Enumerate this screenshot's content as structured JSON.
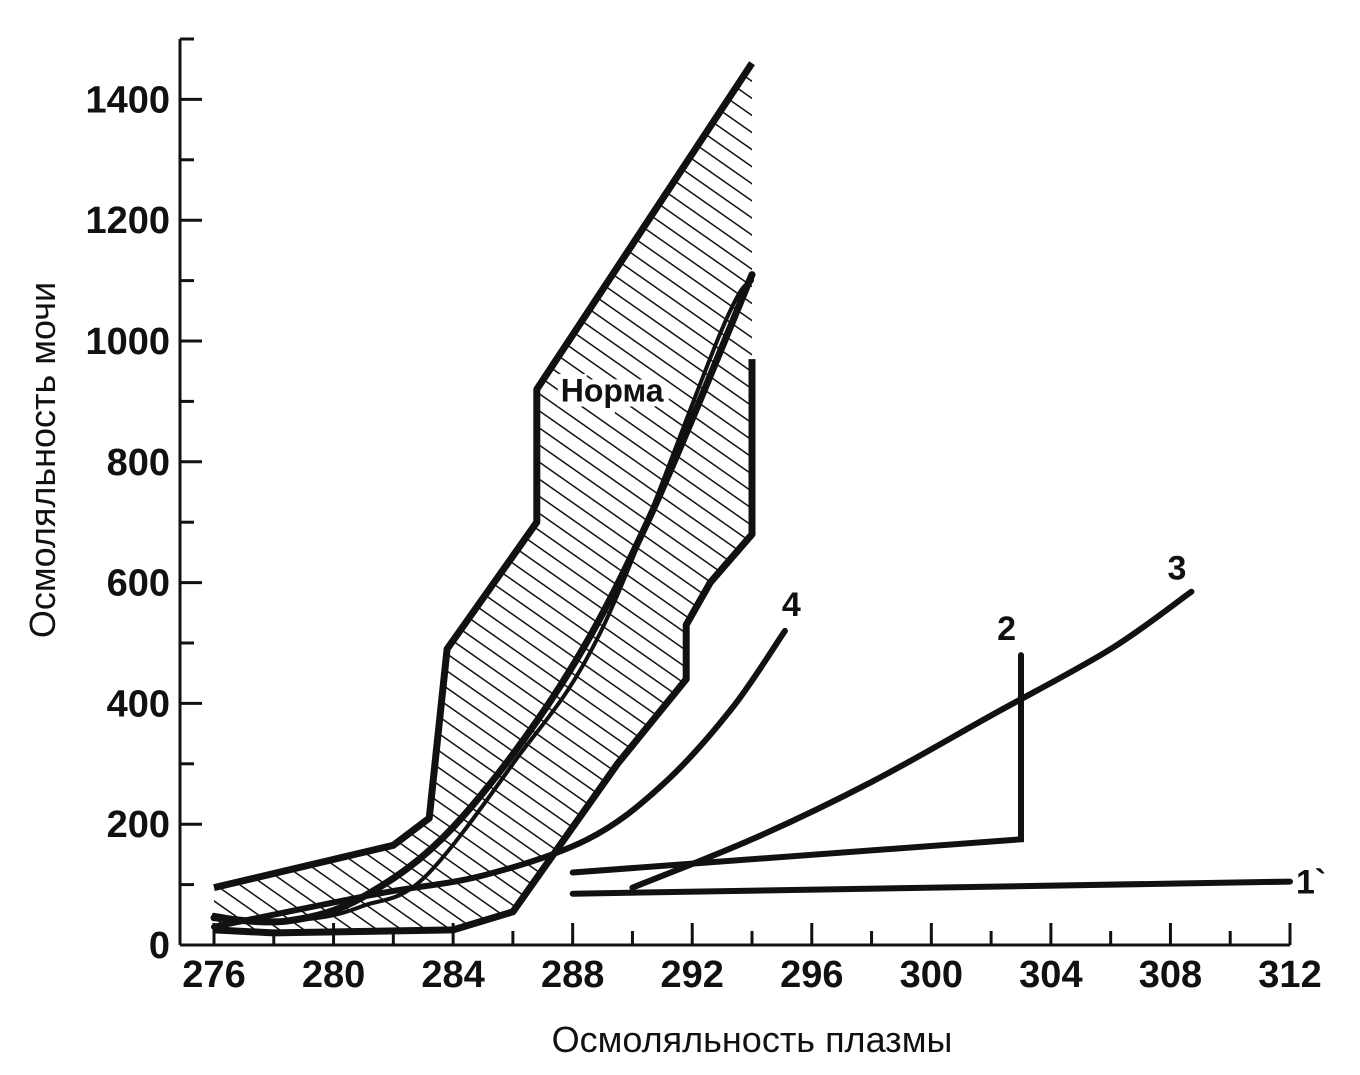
{
  "chart_data": {
    "type": "line",
    "title": "",
    "xlabel": "Осмоляльность плазмы",
    "ylabel": "Осмоляльность мочи",
    "xlim": [
      276,
      312
    ],
    "ylim": [
      0,
      1500
    ],
    "x_ticks": [
      276,
      280,
      284,
      288,
      292,
      296,
      300,
      304,
      308,
      312
    ],
    "y_ticks": [
      0,
      200,
      400,
      600,
      800,
      1000,
      1200,
      1400
    ],
    "x_minor_step": 2,
    "y_minor_step": 100,
    "grid": false,
    "legend": "none",
    "colors": {
      "ink": "#111111",
      "background": "#ffffff"
    },
    "normal_band": {
      "label": "Норма",
      "upper": [
        [
          276,
          95
        ],
        [
          282,
          165
        ],
        [
          283.2,
          210
        ],
        [
          283.8,
          490
        ],
        [
          286.8,
          700
        ],
        [
          286.8,
          920
        ],
        [
          294,
          1460
        ]
      ],
      "lower": [
        [
          276,
          25
        ],
        [
          278,
          20
        ],
        [
          284,
          25
        ],
        [
          286,
          55
        ],
        [
          289.5,
          300
        ],
        [
          291.8,
          440
        ],
        [
          291.8,
          530
        ],
        [
          292.6,
          600
        ],
        [
          294,
          680
        ],
        [
          294,
          970
        ]
      ],
      "center": [
        [
          276,
          45
        ],
        [
          278.5,
          40
        ],
        [
          281,
          80
        ],
        [
          284,
          195
        ],
        [
          287.6,
          430
        ],
        [
          290.5,
          700
        ],
        [
          294,
          1110
        ]
      ],
      "inner_right": [
        [
          276,
          50
        ],
        [
          277.5,
          40
        ],
        [
          279.5,
          45
        ],
        [
          281,
          65
        ],
        [
          283,
          110
        ],
        [
          286,
          300
        ],
        [
          289,
          525
        ],
        [
          293,
          1020
        ],
        [
          294,
          1100
        ]
      ]
    },
    "series": [
      {
        "name": "1`",
        "x": [
          288,
          312
        ],
        "y": [
          85,
          105
        ]
      },
      {
        "name": "2",
        "x": [
          288,
          303,
          303
        ],
        "y": [
          120,
          175,
          480
        ]
      },
      {
        "name": "3",
        "x": [
          290,
          294,
          298,
          302,
          306,
          308.7
        ],
        "y": [
          95,
          175,
          270,
          380,
          490,
          585
        ]
      },
      {
        "name": "4",
        "x": [
          276,
          281.5,
          285,
          288.5,
          291,
          293.3,
          295.1
        ],
        "y": [
          30,
          85,
          115,
          175,
          265,
          390,
          520
        ]
      }
    ]
  }
}
